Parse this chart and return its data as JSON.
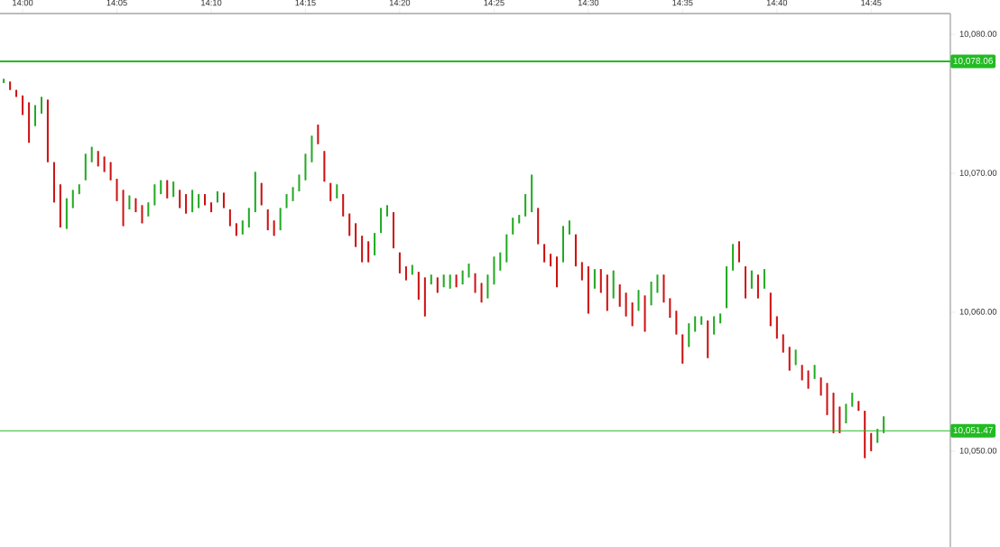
{
  "chart_data": {
    "type": "candlestick",
    "x": [
      13.9833,
      13.9889,
      13.9944,
      14.0,
      14.0056,
      14.0111,
      14.0167,
      14.0222,
      14.0278,
      14.0333,
      14.0389,
      14.0444,
      14.05,
      14.0556,
      14.0611,
      14.0667,
      14.0722,
      14.0778,
      14.0833,
      14.0889,
      14.0944,
      14.1,
      14.1056,
      14.1111,
      14.1167,
      14.1222,
      14.1278,
      14.1333,
      14.1389,
      14.1444,
      14.15,
      14.1556,
      14.1611,
      14.1667,
      14.1722,
      14.1778,
      14.1833,
      14.1889,
      14.1944,
      14.2,
      14.2056,
      14.2111,
      14.2167,
      14.2222,
      14.2278,
      14.2333,
      14.2389,
      14.2444,
      14.25,
      14.2556,
      14.2611,
      14.2667,
      14.2722,
      14.2778,
      14.2833,
      14.2889,
      14.2944,
      14.3,
      14.3056,
      14.3111,
      14.3167,
      14.3222,
      14.3278,
      14.3333,
      14.3389,
      14.3444,
      14.35,
      14.3556,
      14.3611,
      14.3667,
      14.3722,
      14.3778,
      14.3833,
      14.3889,
      14.3944,
      14.4,
      14.4056,
      14.4111,
      14.4167,
      14.4222,
      14.4278,
      14.4333,
      14.4389,
      14.4444,
      14.45,
      14.4556,
      14.4611,
      14.4667,
      14.4722,
      14.4778,
      14.4833,
      14.4889,
      14.4944,
      14.5,
      14.5056,
      14.5111,
      14.5167,
      14.5222,
      14.5278,
      14.5333,
      14.5389,
      14.5444,
      14.55,
      14.5556,
      14.5611,
      14.5667,
      14.5722,
      14.5778,
      14.5833,
      14.5889,
      14.5944,
      14.6,
      14.6056,
      14.6111,
      14.6167,
      14.6222,
      14.6278,
      14.6333,
      14.6389,
      14.6444,
      14.65,
      14.6556,
      14.6611,
      14.6667,
      14.6722,
      14.6778,
      14.6833,
      14.6889,
      14.6944,
      14.7,
      14.7056,
      14.7111,
      14.7167,
      14.7222,
      14.7278,
      14.7333,
      14.7389,
      14.7444,
      14.75,
      14.7556,
      14.7611
    ],
    "ohlc": [
      [
        10076.5,
        10076.8,
        10076.5,
        10076.8
      ],
      [
        10076.6,
        10076.6,
        10076.0,
        10076.0
      ],
      [
        10076.0,
        10076.0,
        10075.5,
        10075.5
      ],
      [
        10075.6,
        10075.6,
        10074.2,
        10074.2
      ],
      [
        10075.1,
        10075.1,
        10072.2,
        10072.2
      ],
      [
        10073.4,
        10074.9,
        10073.4,
        10074.9
      ],
      [
        10074.3,
        10075.5,
        10074.3,
        10075.5
      ],
      [
        10075.3,
        10075.3,
        10070.8,
        10070.8
      ],
      [
        10070.8,
        10070.8,
        10067.9,
        10067.9
      ],
      [
        10069.2,
        10069.2,
        10066.1,
        10066.1
      ],
      [
        10066.0,
        10068.2,
        10066.0,
        10068.2
      ],
      [
        10067.5,
        10068.8,
        10067.5,
        10068.8
      ],
      [
        10068.5,
        10069.2,
        10068.5,
        10069.2
      ],
      [
        10069.5,
        10071.4,
        10069.5,
        10071.4
      ],
      [
        10070.8,
        10071.9,
        10070.8,
        10071.9
      ],
      [
        10071.6,
        10071.6,
        10070.5,
        10070.5
      ],
      [
        10071.2,
        10071.2,
        10070.1,
        10070.1
      ],
      [
        10070.8,
        10070.8,
        10069.5,
        10069.5
      ],
      [
        10069.6,
        10069.6,
        10068.0,
        10068.0
      ],
      [
        10068.8,
        10068.8,
        10066.2,
        10066.2
      ],
      [
        10067.4,
        10068.4,
        10067.4,
        10068.4
      ],
      [
        10068.2,
        10068.2,
        10067.2,
        10067.2
      ],
      [
        10067.7,
        10067.7,
        10066.4,
        10066.4
      ],
      [
        10066.9,
        10067.9,
        10066.9,
        10067.9
      ],
      [
        10067.7,
        10069.2,
        10067.7,
        10069.2
      ],
      [
        10068.5,
        10069.5,
        10068.5,
        10069.5
      ],
      [
        10069.5,
        10069.5,
        10068.2,
        10068.2
      ],
      [
        10068.3,
        10069.4,
        10068.3,
        10069.4
      ],
      [
        10068.8,
        10068.8,
        10067.5,
        10067.5
      ],
      [
        10068.5,
        10068.5,
        10067.1,
        10067.1
      ],
      [
        10067.2,
        10068.8,
        10067.2,
        10068.8
      ],
      [
        10067.5,
        10068.5,
        10067.5,
        10068.5
      ],
      [
        10068.5,
        10068.5,
        10067.7,
        10067.7
      ],
      [
        10067.9,
        10067.9,
        10067.2,
        10067.2
      ],
      [
        10067.9,
        10068.7,
        10067.9,
        10068.7
      ],
      [
        10068.6,
        10068.6,
        10067.5,
        10067.5
      ],
      [
        10067.4,
        10067.4,
        10066.2,
        10066.2
      ],
      [
        10066.4,
        10066.4,
        10065.5,
        10065.5
      ],
      [
        10065.6,
        10066.6,
        10065.6,
        10066.6
      ],
      [
        10066.1,
        10067.5,
        10066.1,
        10067.5
      ],
      [
        10067.2,
        10070.1,
        10067.2,
        10070.1
      ],
      [
        10069.3,
        10069.3,
        10067.7,
        10067.7
      ],
      [
        10067.4,
        10067.4,
        10065.9,
        10065.9
      ],
      [
        10066.6,
        10066.6,
        10065.5,
        10065.5
      ],
      [
        10065.9,
        10067.5,
        10065.9,
        10067.5
      ],
      [
        10067.5,
        10068.5,
        10067.5,
        10068.5
      ],
      [
        10068.0,
        10069.0,
        10068.0,
        10069.0
      ],
      [
        10068.7,
        10069.9,
        10068.7,
        10069.9
      ],
      [
        10069.5,
        10071.4,
        10069.5,
        10071.4
      ],
      [
        10070.8,
        10072.7,
        10070.8,
        10072.7
      ],
      [
        10073.5,
        10073.5,
        10072.1,
        10072.1
      ],
      [
        10071.6,
        10071.6,
        10069.4,
        10069.4
      ],
      [
        10069.3,
        10069.3,
        10068.0,
        10068.0
      ],
      [
        10068.2,
        10069.2,
        10068.2,
        10069.2
      ],
      [
        10068.5,
        10068.5,
        10066.9,
        10066.9
      ],
      [
        10067.1,
        10067.1,
        10065.5,
        10065.5
      ],
      [
        10066.4,
        10066.4,
        10064.7,
        10064.7
      ],
      [
        10065.5,
        10065.5,
        10063.6,
        10063.6
      ],
      [
        10065.1,
        10065.1,
        10063.6,
        10063.6
      ],
      [
        10064.1,
        10065.7,
        10064.1,
        10065.7
      ],
      [
        10065.7,
        10067.5,
        10065.7,
        10067.5
      ],
      [
        10066.9,
        10067.7,
        10066.9,
        10067.7
      ],
      [
        10067.2,
        10067.2,
        10064.6,
        10064.6
      ],
      [
        10064.3,
        10064.3,
        10062.8,
        10062.8
      ],
      [
        10063.3,
        10063.3,
        10062.3,
        10062.3
      ],
      [
        10062.7,
        10063.4,
        10062.7,
        10063.4
      ],
      [
        10062.9,
        10062.9,
        10060.9,
        10060.9
      ],
      [
        10062.5,
        10062.5,
        10059.7,
        10059.7
      ],
      [
        10062.0,
        10062.7,
        10062.0,
        10062.7
      ],
      [
        10062.5,
        10062.5,
        10061.4,
        10061.4
      ],
      [
        10061.8,
        10062.7,
        10061.8,
        10062.7
      ],
      [
        10061.7,
        10062.7,
        10061.7,
        10062.7
      ],
      [
        10062.7,
        10062.7,
        10061.8,
        10061.8
      ],
      [
        10062.0,
        10063.0,
        10062.0,
        10063.0
      ],
      [
        10062.5,
        10063.5,
        10062.5,
        10063.5
      ],
      [
        10062.8,
        10062.8,
        10061.4,
        10061.4
      ],
      [
        10062.1,
        10062.1,
        10060.7,
        10060.7
      ],
      [
        10061.0,
        10062.7,
        10061.0,
        10062.7
      ],
      [
        10062.0,
        10064.0,
        10062.0,
        10064.0
      ],
      [
        10063.0,
        10064.3,
        10063.0,
        10064.3
      ],
      [
        10063.6,
        10065.6,
        10063.6,
        10065.6
      ],
      [
        10065.6,
        10066.8,
        10065.6,
        10066.8
      ],
      [
        10066.4,
        10067.0,
        10066.4,
        10067.0
      ],
      [
        10066.9,
        10068.5,
        10066.9,
        10068.5
      ],
      [
        10067.2,
        10069.9,
        10067.2,
        10069.9
      ],
      [
        10067.5,
        10067.5,
        10064.9,
        10064.9
      ],
      [
        10064.9,
        10064.9,
        10063.6,
        10063.6
      ],
      [
        10064.2,
        10064.2,
        10063.3,
        10063.3
      ],
      [
        10064.0,
        10064.0,
        10061.8,
        10061.8
      ],
      [
        10063.6,
        10066.2,
        10063.6,
        10066.2
      ],
      [
        10065.6,
        10066.6,
        10065.6,
        10066.6
      ],
      [
        10065.6,
        10065.6,
        10063.3,
        10063.3
      ],
      [
        10063.6,
        10063.6,
        10062.3,
        10062.3
      ],
      [
        10063.3,
        10063.3,
        10059.9,
        10059.9
      ],
      [
        10061.7,
        10063.1,
        10061.7,
        10063.1
      ],
      [
        10063.1,
        10063.1,
        10061.4,
        10061.4
      ],
      [
        10062.7,
        10062.7,
        10060.1,
        10060.1
      ],
      [
        10061.0,
        10063.0,
        10061.0,
        10063.0
      ],
      [
        10062.0,
        10062.0,
        10060.4,
        10060.4
      ],
      [
        10061.4,
        10061.4,
        10059.7,
        10059.7
      ],
      [
        10060.7,
        10060.7,
        10059.0,
        10059.0
      ],
      [
        10060.1,
        10061.6,
        10060.1,
        10061.6
      ],
      [
        10061.2,
        10061.2,
        10058.6,
        10058.6
      ],
      [
        10060.5,
        10062.2,
        10060.5,
        10062.2
      ],
      [
        10061.4,
        10062.7,
        10061.4,
        10062.7
      ],
      [
        10062.7,
        10062.7,
        10060.7,
        10060.7
      ],
      [
        10061.0,
        10061.0,
        10059.6,
        10059.6
      ],
      [
        10060.1,
        10060.1,
        10058.4,
        10058.4
      ],
      [
        10058.4,
        10058.4,
        10056.3,
        10056.3
      ],
      [
        10057.5,
        10059.2,
        10057.5,
        10059.2
      ],
      [
        10058.6,
        10059.7,
        10058.6,
        10059.7
      ],
      [
        10059.1,
        10059.7,
        10059.1,
        10059.7
      ],
      [
        10059.4,
        10059.4,
        10056.7,
        10056.7
      ],
      [
        10058.4,
        10059.7,
        10058.4,
        10059.7
      ],
      [
        10059.2,
        10059.9,
        10059.2,
        10059.9
      ],
      [
        10060.3,
        10063.3,
        10060.3,
        10063.3
      ],
      [
        10063.0,
        10064.9,
        10063.0,
        10064.9
      ],
      [
        10065.1,
        10065.1,
        10063.6,
        10063.6
      ],
      [
        10063.3,
        10063.3,
        10061.0,
        10061.0
      ],
      [
        10061.7,
        10063.0,
        10061.7,
        10063.0
      ],
      [
        10062.7,
        10062.7,
        10061.0,
        10061.0
      ],
      [
        10061.7,
        10063.1,
        10061.7,
        10063.1
      ],
      [
        10061.4,
        10061.4,
        10059.0,
        10059.0
      ],
      [
        10059.7,
        10059.7,
        10058.1,
        10058.1
      ],
      [
        10058.4,
        10058.4,
        10057.1,
        10057.1
      ],
      [
        10057.5,
        10057.5,
        10055.8,
        10055.8
      ],
      [
        10056.2,
        10057.3,
        10056.2,
        10057.3
      ],
      [
        10056.2,
        10056.2,
        10055.1,
        10055.1
      ],
      [
        10055.8,
        10055.8,
        10054.5,
        10054.5
      ],
      [
        10055.2,
        10056.2,
        10055.2,
        10056.2
      ],
      [
        10055.3,
        10055.3,
        10054.0,
        10054.0
      ],
      [
        10054.9,
        10054.9,
        10052.6,
        10052.6
      ],
      [
        10054.2,
        10054.2,
        10051.3,
        10051.3
      ],
      [
        10053.2,
        10053.2,
        10051.3,
        10051.3
      ],
      [
        10052.0,
        10053.4,
        10052.0,
        10053.4
      ],
      [
        10053.2,
        10054.2,
        10053.2,
        10054.2
      ],
      [
        10053.6,
        10053.6,
        10052.9,
        10052.9
      ],
      [
        10052.9,
        10052.9,
        10049.5,
        10049.5
      ],
      [
        10051.3,
        10051.3,
        10050.0,
        10050.0
      ],
      [
        10050.6,
        10051.6,
        10050.6,
        10051.6
      ],
      [
        10051.3,
        10052.5,
        10051.3,
        10052.5
      ]
    ],
    "colors": [
      "#22aa22",
      "#cc1111",
      "#cc1111",
      "#cc1111",
      "#cc1111",
      "#22aa22",
      "#22aa22",
      "#cc1111",
      "#cc1111",
      "#cc1111",
      "#22aa22",
      "#22aa22",
      "#22aa22",
      "#22aa22",
      "#22aa22",
      "#cc1111",
      "#cc1111",
      "#cc1111",
      "#cc1111",
      "#cc1111",
      "#22aa22",
      "#cc1111",
      "#cc1111",
      "#22aa22",
      "#22aa22",
      "#22aa22",
      "#cc1111",
      "#22aa22",
      "#cc1111",
      "#cc1111",
      "#22aa22",
      "#22aa22",
      "#cc1111",
      "#cc1111",
      "#22aa22",
      "#cc1111",
      "#cc1111",
      "#cc1111",
      "#22aa22",
      "#22aa22",
      "#22aa22",
      "#cc1111",
      "#cc1111",
      "#cc1111",
      "#22aa22",
      "#22aa22",
      "#22aa22",
      "#22aa22",
      "#22aa22",
      "#22aa22",
      "#cc1111",
      "#cc1111",
      "#cc1111",
      "#22aa22",
      "#cc1111",
      "#cc1111",
      "#cc1111",
      "#cc1111",
      "#cc1111",
      "#22aa22",
      "#22aa22",
      "#22aa22",
      "#cc1111",
      "#cc1111",
      "#cc1111",
      "#22aa22",
      "#cc1111",
      "#cc1111",
      "#22aa22",
      "#cc1111",
      "#22aa22",
      "#22aa22",
      "#cc1111",
      "#22aa22",
      "#22aa22",
      "#cc1111",
      "#cc1111",
      "#22aa22",
      "#22aa22",
      "#22aa22",
      "#22aa22",
      "#22aa22",
      "#22aa22",
      "#22aa22",
      "#22aa22",
      "#cc1111",
      "#cc1111",
      "#cc1111",
      "#cc1111",
      "#22aa22",
      "#22aa22",
      "#cc1111",
      "#cc1111",
      "#cc1111",
      "#22aa22",
      "#cc1111",
      "#cc1111",
      "#22aa22",
      "#cc1111",
      "#cc1111",
      "#cc1111",
      "#22aa22",
      "#cc1111",
      "#22aa22",
      "#22aa22",
      "#cc1111",
      "#cc1111",
      "#cc1111",
      "#cc1111",
      "#22aa22",
      "#22aa22",
      "#22aa22",
      "#cc1111",
      "#22aa22",
      "#22aa22",
      "#22aa22",
      "#22aa22",
      "#cc1111",
      "#cc1111",
      "#22aa22",
      "#cc1111",
      "#22aa22",
      "#cc1111",
      "#cc1111",
      "#cc1111",
      "#cc1111",
      "#22aa22",
      "#cc1111",
      "#cc1111",
      "#22aa22",
      "#cc1111",
      "#cc1111",
      "#cc1111",
      "#cc1111",
      "#22aa22",
      "#22aa22",
      "#cc1111",
      "#cc1111",
      "#cc1111",
      "#22aa22",
      "#22aa22"
    ],
    "xlim": [
      13.98,
      14.82
    ],
    "xticks": [
      {
        "value": 14.0,
        "label": "14:00"
      },
      {
        "value": 14.0833,
        "label": "14:05"
      },
      {
        "value": 14.1667,
        "label": "14:10"
      },
      {
        "value": 14.25,
        "label": "14:15"
      },
      {
        "value": 14.3333,
        "label": "14:20"
      },
      {
        "value": 14.4167,
        "label": "14:25"
      },
      {
        "value": 14.5,
        "label": "14:30"
      },
      {
        "value": 14.5833,
        "label": "14:35"
      },
      {
        "value": 14.6667,
        "label": "14:40"
      },
      {
        "value": 14.75,
        "label": "14:45"
      }
    ],
    "ylim": [
      10043.1,
      10081.5
    ],
    "yticks": [
      {
        "value": 10050,
        "label": "10,050.00"
      },
      {
        "value": 10060,
        "label": "10,060.00"
      },
      {
        "value": 10070,
        "label": "10,070.00"
      },
      {
        "value": 10080,
        "label": "10,080.00"
      }
    ],
    "ref_lines": [
      {
        "axis": "y",
        "value": 10078.06,
        "label": "10,078.06",
        "color": "#22bb22"
      },
      {
        "axis": "y",
        "value": 10051.47,
        "label": "10,051.47",
        "color": "#22bb22"
      }
    ],
    "grid": false
  }
}
